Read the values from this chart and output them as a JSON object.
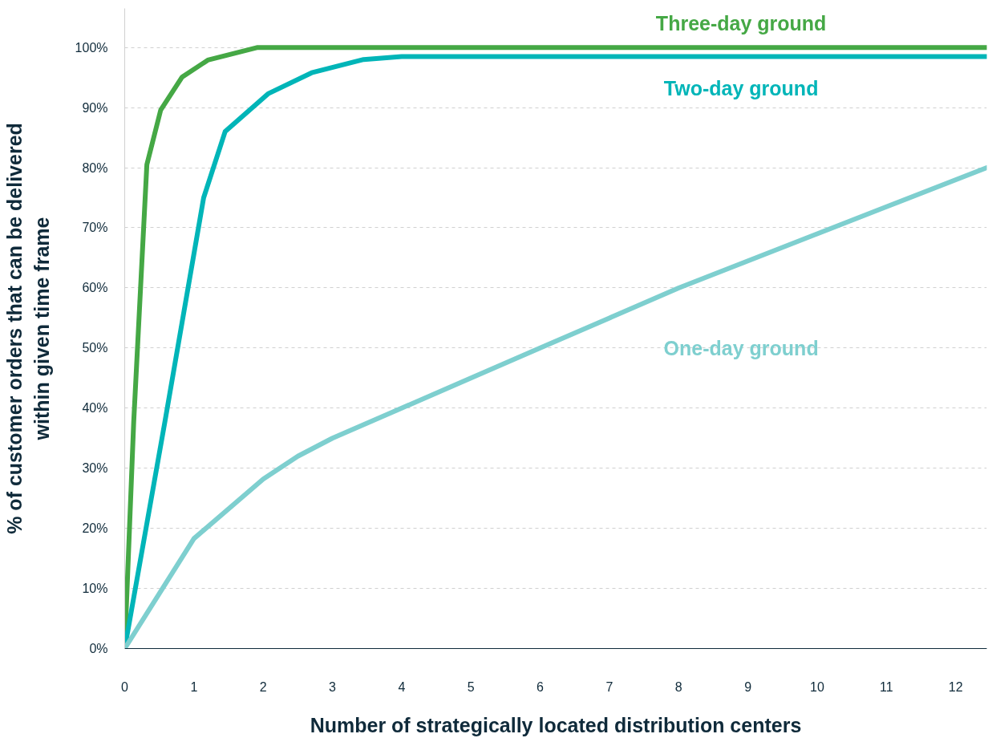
{
  "chart_data": {
    "type": "line",
    "xlabel": "Number of strategically located distribution centers",
    "ylabel": "% of customer orders that can be delivered\nwithin given time frame",
    "xlim": [
      0,
      12.45
    ],
    "ylim": [
      0,
      106.5
    ],
    "xticks": [
      0,
      1,
      2,
      3,
      4,
      5,
      6,
      7,
      8,
      9,
      10,
      11,
      12
    ],
    "yticks": [
      {
        "value": 0,
        "label": "0%"
      },
      {
        "value": 10,
        "label": "10%"
      },
      {
        "value": 20,
        "label": "20%"
      },
      {
        "value": 30,
        "label": "30%"
      },
      {
        "value": 40,
        "label": "40%"
      },
      {
        "value": 50,
        "label": "50%"
      },
      {
        "value": 60,
        "label": "60%"
      },
      {
        "value": 70,
        "label": "70%"
      },
      {
        "value": 80,
        "label": "80%"
      },
      {
        "value": 90,
        "label": "90%"
      },
      {
        "value": 100,
        "label": "100%"
      }
    ],
    "grid": "y",
    "marker": "none",
    "line_style": "solid",
    "series": [
      {
        "name": "Three-day ground",
        "color": "#45a845",
        "x": [
          0,
          0.13,
          0.32,
          0.52,
          0.83,
          1.2,
          1.92,
          12.45
        ],
        "values": [
          0,
          37.7,
          80.5,
          89.6,
          95.1,
          97.9,
          100,
          100
        ]
      },
      {
        "name": "Two-day ground",
        "color": "#00b5b8",
        "x": [
          0,
          0.58,
          1.14,
          1.45,
          2.07,
          2.7,
          3.45,
          4,
          12.45
        ],
        "values": [
          0,
          37.7,
          75,
          86,
          92.3,
          95.8,
          98,
          98.5,
          98.5
        ]
      },
      {
        "name": "One-day ground",
        "color": "#7ecfcf",
        "x": [
          0,
          1,
          2,
          2.5,
          3,
          4,
          5,
          6,
          7,
          8,
          9,
          10,
          11,
          12.45
        ],
        "values": [
          0,
          18.3,
          28.2,
          32,
          35,
          40,
          45,
          50,
          55,
          60,
          64.5,
          69,
          73.5,
          80
        ]
      }
    ]
  }
}
